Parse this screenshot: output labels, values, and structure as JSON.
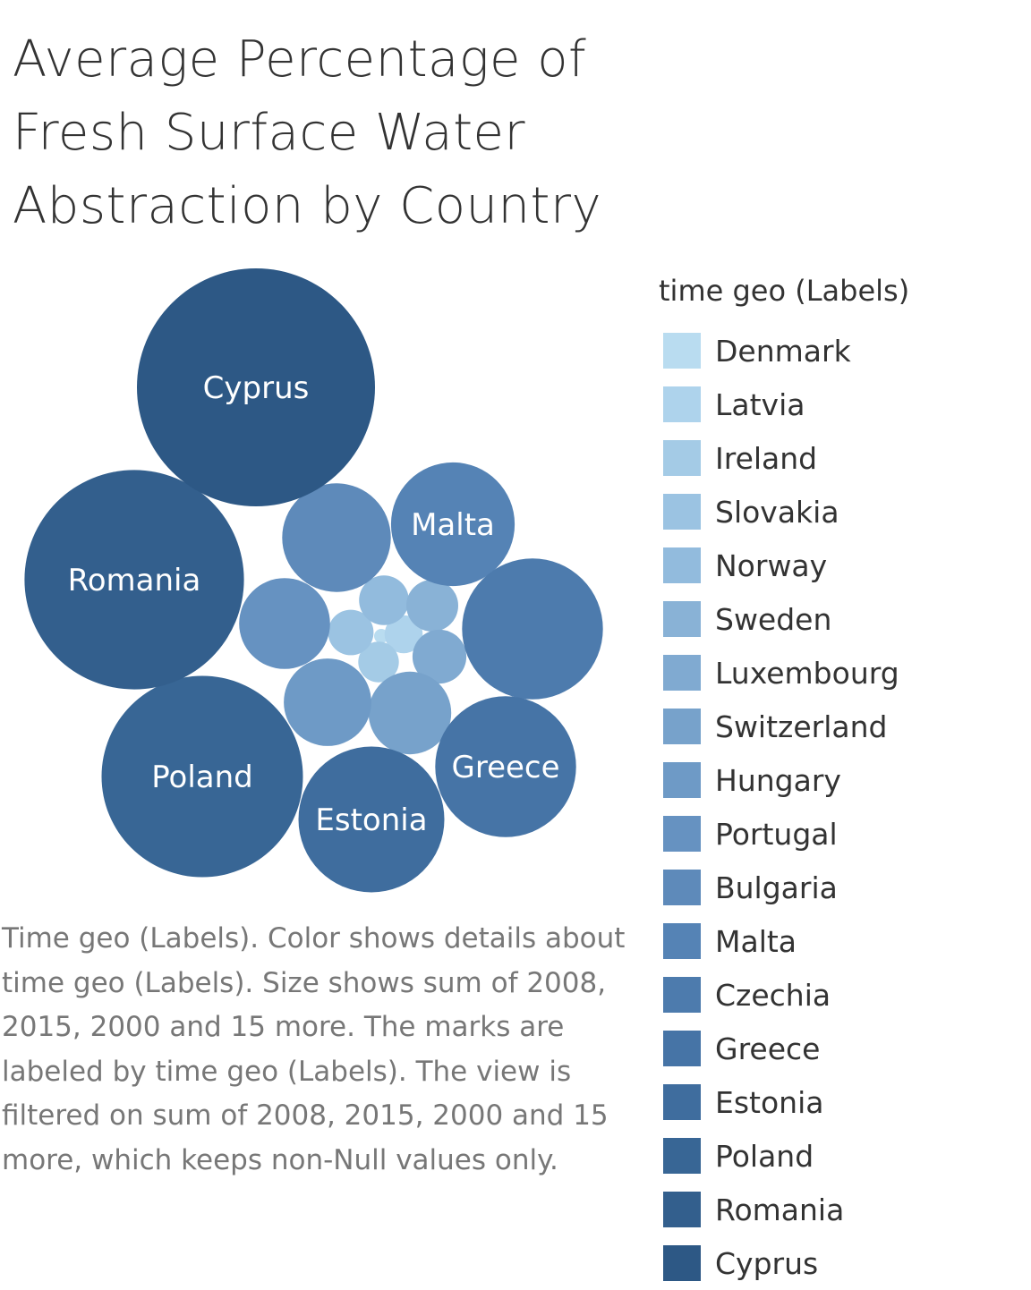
{
  "chart_data": {
    "type": "bubble",
    "title": "Average Percentage of Fresh Surface Water Abstraction by Country",
    "legend": {
      "title": "time geo (Labels)",
      "position": "right"
    },
    "caption": "Time geo (Labels).  Color shows details about time geo (Labels).  Size shows sum of 2008, 2015, 2000 and 15 more.  The marks are labeled by time geo (Labels).  The view is filtered on sum of 2008, 2015, 2000 and 15 more, which keeps non-Null values only.",
    "series": [
      {
        "name": "Denmark",
        "value": 0.1,
        "color": "#b9dcf0",
        "show_label": false
      },
      {
        "name": "Latvia",
        "value": 0.7,
        "color": "#aed3ec",
        "show_label": false
      },
      {
        "name": "Ireland",
        "value": 0.8,
        "color": "#a4cbe6",
        "show_label": false
      },
      {
        "name": "Slovakia",
        "value": 1.0,
        "color": "#9bc3e2",
        "show_label": false
      },
      {
        "name": "Norway",
        "value": 1.2,
        "color": "#92bbdd",
        "show_label": false
      },
      {
        "name": "Sweden",
        "value": 1.3,
        "color": "#89b2d6",
        "show_label": false
      },
      {
        "name": "Luxembourg",
        "value": 1.4,
        "color": "#80aad1",
        "show_label": false
      },
      {
        "name": "Switzerland",
        "value": 3.3,
        "color": "#77a2cb",
        "show_label": false
      },
      {
        "name": "Hungary",
        "value": 3.7,
        "color": "#6e9ac6",
        "show_label": false
      },
      {
        "name": "Portugal",
        "value": 4.0,
        "color": "#6692c1",
        "show_label": false
      },
      {
        "name": "Bulgaria",
        "value": 5.7,
        "color": "#5e8aba",
        "show_label": false
      },
      {
        "name": "Malta",
        "value": 7.4,
        "color": "#5583b5",
        "show_label": true
      },
      {
        "name": "Czechia",
        "value": 9.6,
        "color": "#4d7bad",
        "show_label": false
      },
      {
        "name": "Greece",
        "value": 9.6,
        "color": "#4674a6",
        "show_label": true
      },
      {
        "name": "Estonia",
        "value": 10.3,
        "color": "#3f6d9e",
        "show_label": true
      },
      {
        "name": "Poland",
        "value": 19.6,
        "color": "#386695",
        "show_label": true
      },
      {
        "name": "Romania",
        "value": 23.3,
        "color": "#335f8d",
        "show_label": true
      },
      {
        "name": "Cyprus",
        "value": 27.4,
        "color": "#2d5885",
        "show_label": true
      }
    ]
  }
}
